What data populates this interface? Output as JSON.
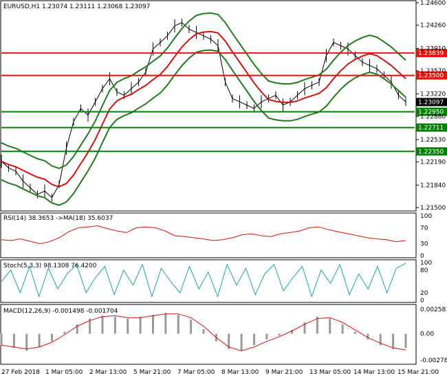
{
  "chart_data": {
    "type": "candlestick",
    "symbol_header": "EURUSD,H1  1.23074 1.23111 1.23068 1.23097",
    "price_axis_ticks": [
      "1.24600",
      "1.24260",
      "1.23910",
      "1.23570",
      "1.23220",
      "1.22880",
      "1.22530",
      "1.22190",
      "1.21840",
      "1.21500"
    ],
    "price_axis_range": [
      1.215,
      1.246
    ],
    "horizontal_levels": [
      {
        "value": 1.23839,
        "label": "1.23839",
        "color": "#e8120c"
      },
      {
        "value": 1.235,
        "label": "1.23500",
        "color": "#e8120c"
      },
      {
        "value": 1.2295,
        "label": "1.22950",
        "color": "#008000"
      },
      {
        "value": 1.22711,
        "label": "1.22711",
        "color": "#008000"
      },
      {
        "value": 1.2235,
        "label": "1.22350",
        "color": "#008000"
      }
    ],
    "current_price": {
      "value": 1.23097,
      "label": "1.23097"
    },
    "time_axis_labels": [
      "27 Feb 2018",
      "1 Mar 05:00",
      "2 Mar 13:00",
      "5 Mar 21:00",
      "7 Mar 05:00",
      "8 Mar 13:00",
      "9 Mar 21:00",
      "13 Mar 05:00",
      "14 Mar 13:00",
      "15 Mar 21:00"
    ],
    "close_path": [
      1.222,
      1.221,
      1.2205,
      1.219,
      1.218,
      1.217,
      1.2175,
      1.2165,
      1.2185,
      1.224,
      1.228,
      1.23,
      1.229,
      1.231,
      1.233,
      1.2345,
      1.2325,
      1.232,
      1.233,
      1.234,
      1.2355,
      1.239,
      1.24,
      1.241,
      1.2425,
      1.243,
      1.242,
      1.2415,
      1.241,
      1.2405,
      1.2395,
      1.234,
      1.2315,
      1.231,
      1.2305,
      1.23,
      1.231,
      1.2315,
      1.232,
      1.2305,
      1.231,
      1.232,
      1.233,
      1.2335,
      1.234,
      1.238,
      1.24,
      1.2395,
      1.239,
      1.238,
      1.237,
      1.2365,
      1.236,
      1.235,
      1.234,
      1.232,
      1.231
    ],
    "rsi": {
      "header": "RSI(14) 38.3653  ->MA(18) 35.6037",
      "ticks": [
        "100",
        "70",
        "30",
        "0"
      ],
      "range": [
        0,
        100
      ],
      "values": [
        40,
        38,
        42,
        36,
        30,
        35,
        45,
        60,
        70,
        72,
        75,
        68,
        62,
        58,
        70,
        72,
        70,
        62,
        50,
        48,
        45,
        42,
        38,
        40,
        45,
        52,
        55,
        50,
        48,
        55,
        58,
        62,
        70,
        72,
        65,
        60,
        55,
        50,
        45,
        42,
        40,
        35,
        38
      ]
    },
    "stoch": {
      "header": "Stoch(5,3,3) 98.1308 76.4200",
      "ticks": [
        "100",
        "80",
        "20",
        "0"
      ],
      "range": [
        0,
        100
      ],
      "values": [
        50,
        80,
        20,
        90,
        10,
        85,
        30,
        70,
        95,
        20,
        60,
        90,
        15,
        80,
        40,
        95,
        10,
        85,
        50,
        20,
        90,
        30,
        75,
        10,
        95,
        40,
        85,
        15,
        70,
        95,
        25,
        60,
        90,
        10,
        80,
        45,
        95,
        15,
        70,
        30,
        90,
        20,
        85,
        98
      ]
    },
    "macd": {
      "header": "MACD(12,26,9) -0.001498 -0.001704",
      "ticks": [
        "0.002581",
        "0.00",
        "-0.002781"
      ],
      "range": [
        -0.003,
        0.0028
      ],
      "histogram": [
        -0.0012,
        -0.0015,
        -0.0018,
        -0.0014,
        -0.0008,
        0.0002,
        0.001,
        0.0016,
        0.0019,
        0.0018,
        0.0016,
        0.0018,
        0.002,
        0.0022,
        0.002,
        0.0015,
        0.0005,
        -0.0008,
        -0.0016,
        -0.0018,
        -0.0012,
        -0.0006,
        -0.0002,
        0.0004,
        0.0012,
        0.0018,
        0.0016,
        0.001,
        0.0002,
        -0.0006,
        -0.0012,
        -0.0016,
        -0.0015
      ],
      "signal": [
        -0.0012,
        -0.0014,
        -0.0016,
        -0.0014,
        -0.0009,
        -0.0001,
        0.0008,
        0.0014,
        0.0018,
        0.0019,
        0.0017,
        0.0017,
        0.0019,
        0.0021,
        0.0021,
        0.0017,
        0.0008,
        -0.0004,
        -0.0014,
        -0.0018,
        -0.0014,
        -0.0008,
        -0.0003,
        0.0003,
        0.001,
        0.0016,
        0.0017,
        0.0012,
        0.0004,
        -0.0004,
        -0.001,
        -0.0015,
        -0.0017
      ]
    }
  }
}
